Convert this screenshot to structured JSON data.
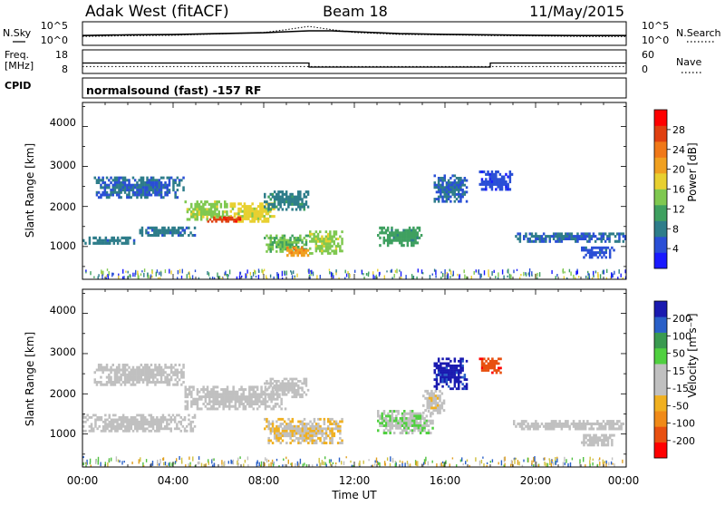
{
  "header": {
    "station": "Adak West (fitACF)",
    "beam": "Beam 18",
    "date": "11/May/2015"
  },
  "summary_panels": {
    "nsky_label": "N.Sky",
    "nsearch_label": "N.Search",
    "nsky_ticks": [
      "10^5",
      "10^0"
    ],
    "nsearch_ticks": [
      "10^5",
      "10^0"
    ],
    "freq_label_1": "Freq.",
    "freq_label_2": "[MHz]",
    "freq_ticks": [
      "18",
      "8"
    ],
    "nave_label": "Nave",
    "nave_ticks": [
      "60",
      "0"
    ],
    "cpid_label": "CPID",
    "cpid_text": "normalsound (fast) -157 RF"
  },
  "time_axis": {
    "ticks": [
      "00:00",
      "04:00",
      "08:00",
      "12:00",
      "16:00",
      "20:00",
      "00:00"
    ],
    "label": "Time UT"
  },
  "power_panel": {
    "ylabel": "Slant Range [km]",
    "yticks": [
      "4000",
      "3000",
      "2000",
      "1000"
    ],
    "colorbar_label": "Power [dB]",
    "colorbar_ticks": [
      "28",
      "24",
      "20",
      "16",
      "12",
      "8",
      "4"
    ]
  },
  "velocity_panel": {
    "ylabel": "Slant Range [km]",
    "yticks": [
      "4000",
      "3000",
      "2000",
      "1000"
    ],
    "colorbar_label": "Velocity [m s⁻¹]",
    "colorbar_ticks": [
      "200",
      "100",
      "50",
      "15",
      "-15",
      "-50",
      "-100",
      "-200"
    ]
  },
  "colors": {
    "power_scale": [
      "#1a1aff",
      "#2a4fd6",
      "#2e7d8a",
      "#3fa060",
      "#7fc850",
      "#e8d030",
      "#f0a020",
      "#f07818",
      "#e04010",
      "#ff0000"
    ],
    "velocity_scale": [
      "#ff0000",
      "#e85010",
      "#f08a18",
      "#f0b020",
      "#c0c0c0",
      "#c0c0c0",
      "#50d040",
      "#3a9a50",
      "#2a60c8",
      "#1a1ab0"
    ],
    "ground_scatter": "#c0c0c0"
  },
  "chart_data": [
    {
      "type": "line",
      "title": "N.Sky / N.Search",
      "x_range_hours": [
        0,
        24
      ],
      "y_scale": "log",
      "ylim": [
        1,
        100000
      ],
      "series": [
        {
          "name": "N.Sky",
          "style": "solid",
          "x": [
            0,
            2,
            4,
            6,
            8,
            9,
            10,
            11,
            12,
            14,
            16,
            18,
            20,
            22,
            24
          ],
          "y": [
            100,
            150,
            180,
            300,
            500,
            900,
            1500,
            1500,
            900,
            300,
            200,
            150,
            120,
            100,
            100
          ]
        },
        {
          "name": "N.Search",
          "style": "dotted",
          "x": [
            0,
            2,
            4,
            6,
            8,
            9,
            10,
            11,
            12,
            14,
            16,
            18,
            20,
            22,
            24
          ],
          "y": [
            60,
            90,
            120,
            250,
            600,
            3000,
            20000,
            3000,
            600,
            200,
            150,
            100,
            80,
            60,
            60
          ]
        }
      ]
    },
    {
      "type": "line",
      "title": "Freq. / Nave",
      "x_range_hours": [
        0,
        24
      ],
      "ylim_freq_mhz": [
        8,
        18
      ],
      "ylim_nave": [
        0,
        60
      ],
      "series": [
        {
          "name": "Freq.",
          "style": "solid",
          "x": [
            0,
            10,
            10,
            18,
            18,
            24
          ],
          "y": [
            12.5,
            12.5,
            10.4,
            10.4,
            12.5,
            12.5
          ]
        },
        {
          "name": "Nave",
          "style": "dotted",
          "x": [
            0,
            24
          ],
          "y": [
            16,
            16
          ]
        }
      ]
    },
    {
      "type": "heatmap",
      "title": "Power [dB]",
      "x_range_hours": [
        0,
        24
      ],
      "ylim_km": [
        180,
        4600
      ],
      "zlim": [
        0,
        30
      ],
      "regions": [
        {
          "t": [
            0.0,
            2.5
          ],
          "r": [
            1050,
            1250
          ],
          "z": 7
        },
        {
          "t": [
            2.5,
            5.0
          ],
          "r": [
            1250,
            1500
          ],
          "z": 7
        },
        {
          "t": [
            0.5,
            4.5
          ],
          "r": [
            2200,
            2750
          ],
          "z": 6
        },
        {
          "t": [
            4.5,
            6.5
          ],
          "r": [
            1650,
            2150
          ],
          "z": 14
        },
        {
          "t": [
            6.5,
            8.5
          ],
          "r": [
            1600,
            2100
          ],
          "z": 16
        },
        {
          "t": [
            5.5,
            7.0
          ],
          "r": [
            1600,
            1750
          ],
          "z": 26
        },
        {
          "t": [
            8.0,
            10.0
          ],
          "r": [
            1900,
            2400
          ],
          "z": 8
        },
        {
          "t": [
            8.0,
            10.0
          ],
          "r": [
            850,
            1300
          ],
          "z": 12
        },
        {
          "t": [
            9.0,
            10.0
          ],
          "r": [
            750,
            1000
          ],
          "z": 20
        },
        {
          "t": [
            10.0,
            11.5
          ],
          "r": [
            800,
            1400
          ],
          "z": 14
        },
        {
          "t": [
            13.0,
            15.0
          ],
          "r": [
            1000,
            1500
          ],
          "z": 10
        },
        {
          "t": [
            15.5,
            17.0
          ],
          "r": [
            2100,
            2800
          ],
          "z": 6
        },
        {
          "t": [
            17.5,
            19.0
          ],
          "r": [
            2400,
            2900
          ],
          "z": 4
        },
        {
          "t": [
            19.0,
            24.0
          ],
          "r": [
            1100,
            1350
          ],
          "z": 6
        },
        {
          "t": [
            22.0,
            23.5
          ],
          "r": [
            700,
            1000
          ],
          "z": 5
        }
      ]
    },
    {
      "type": "heatmap",
      "title": "Velocity [m s⁻¹]",
      "x_range_hours": [
        0,
        24
      ],
      "ylim_km": [
        180,
        4600
      ],
      "zlim": [
        -250,
        250
      ],
      "regions": [
        {
          "t": [
            0.0,
            5.0
          ],
          "r": [
            1050,
            1500
          ],
          "z": 0,
          "ground_scatter": true
        },
        {
          "t": [
            0.5,
            4.5
          ],
          "r": [
            2200,
            2750
          ],
          "z": 0,
          "ground_scatter": true
        },
        {
          "t": [
            4.5,
            9.0
          ],
          "r": [
            1600,
            2200
          ],
          "z": 0,
          "ground_scatter": true
        },
        {
          "t": [
            8.0,
            10.0
          ],
          "r": [
            1900,
            2400
          ],
          "z": 0,
          "ground_scatter": true
        },
        {
          "t": [
            8.0,
            11.5
          ],
          "r": [
            750,
            1400
          ],
          "z": -45
        },
        {
          "t": [
            13.0,
            15.5
          ],
          "r": [
            1000,
            1600
          ],
          "z": 40
        },
        {
          "t": [
            15.0,
            16.0
          ],
          "r": [
            1500,
            2100
          ],
          "z": -30
        },
        {
          "t": [
            15.5,
            17.0
          ],
          "r": [
            2100,
            2900
          ],
          "z": 220
        },
        {
          "t": [
            17.5,
            18.5
          ],
          "r": [
            2500,
            2900
          ],
          "z": -180
        },
        {
          "t": [
            19.0,
            24.0
          ],
          "r": [
            1100,
            1350
          ],
          "z": 0,
          "ground_scatter": true
        },
        {
          "t": [
            22.0,
            23.5
          ],
          "r": [
            700,
            1000
          ],
          "z": 0,
          "ground_scatter": true
        }
      ]
    }
  ]
}
